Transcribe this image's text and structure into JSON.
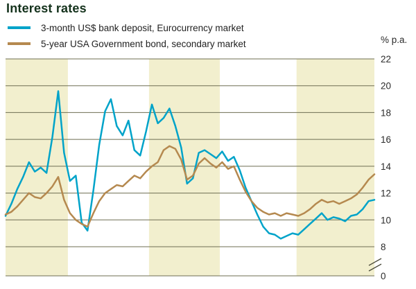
{
  "title": "Interest rates",
  "legend": [
    {
      "label": "3-month US$ bank deposit, Eurocurrency market",
      "color": "#00a3c9"
    },
    {
      "label": "5-year USA Government bond, secondary market",
      "color": "#b5894f"
    }
  ],
  "axis": {
    "unit_label": "% p.a.",
    "ticks": [
      22,
      20,
      18,
      16,
      14,
      12,
      10,
      8,
      0
    ]
  },
  "chart_data": {
    "type": "line",
    "title": "Interest rates",
    "xlabel": "",
    "ylabel": "% p.a.",
    "ylim": [
      8,
      22
    ],
    "y_break": {
      "upper": 8,
      "lower": 0
    },
    "grid": true,
    "grid_color": "#6e6e52",
    "legend_position": "top-left",
    "background_bands": {
      "color": "#f2efce",
      "boundaries_frac": [
        0,
        0.169,
        0.389,
        0.581,
        0.789,
        1.0
      ],
      "shaded_band_indices": [
        0,
        2,
        4
      ]
    },
    "series": [
      {
        "name": "3-month US$ bank deposit, Eurocurrency market",
        "color": "#00a3c9",
        "values": [
          10.3,
          11.2,
          12.3,
          13.2,
          14.3,
          13.6,
          13.9,
          13.5,
          16.2,
          19.6,
          15.0,
          12.9,
          13.3,
          9.8,
          9.2,
          12.2,
          15.6,
          18.1,
          19.0,
          17.0,
          16.3,
          17.4,
          15.2,
          14.8,
          16.6,
          18.6,
          17.2,
          17.6,
          18.3,
          17.0,
          15.4,
          12.7,
          13.1,
          15.0,
          15.2,
          14.9,
          14.6,
          15.1,
          14.4,
          14.7,
          13.7,
          12.4,
          11.4,
          10.4,
          9.5,
          9.0,
          8.9,
          8.6,
          8.8,
          9.0,
          8.9,
          9.3,
          9.7,
          10.1,
          10.5,
          10.0,
          10.2,
          10.1,
          9.9,
          10.3,
          10.4,
          10.8,
          11.4,
          11.5
        ]
      },
      {
        "name": "5-year USA Government bond, secondary market",
        "color": "#b5894f",
        "values": [
          10.4,
          10.6,
          11.0,
          11.5,
          12.0,
          11.7,
          11.6,
          12.0,
          12.5,
          13.2,
          11.5,
          10.5,
          10.0,
          9.7,
          9.5,
          10.5,
          11.4,
          12.0,
          12.3,
          12.6,
          12.5,
          12.9,
          13.3,
          13.1,
          13.6,
          14.0,
          14.3,
          15.2,
          15.5,
          15.3,
          14.5,
          13.0,
          13.3,
          14.2,
          14.6,
          14.2,
          13.9,
          14.3,
          13.8,
          14.0,
          13.0,
          12.1,
          11.4,
          10.9,
          10.6,
          10.4,
          10.5,
          10.3,
          10.5,
          10.4,
          10.3,
          10.5,
          10.8,
          11.2,
          11.5,
          11.3,
          11.4,
          11.2,
          11.4,
          11.6,
          11.9,
          12.4,
          13.0,
          13.4
        ]
      }
    ]
  }
}
